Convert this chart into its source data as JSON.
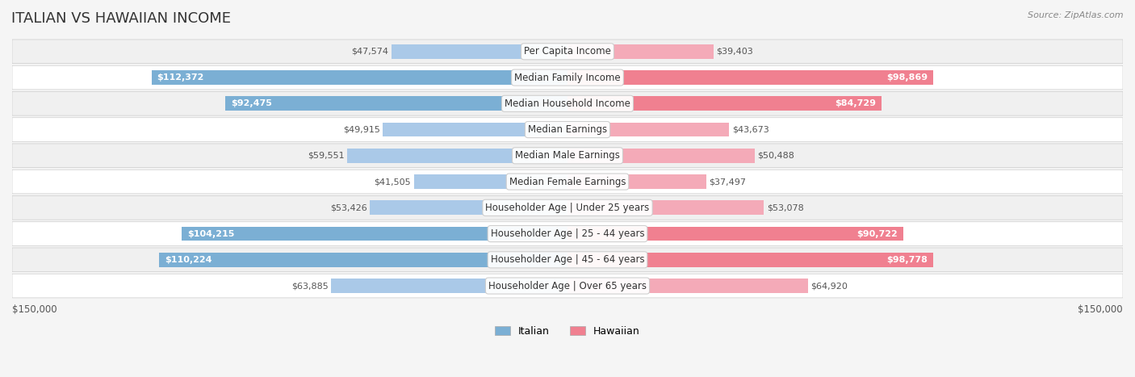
{
  "title": "ITALIAN VS HAWAIIAN INCOME",
  "source": "Source: ZipAtlas.com",
  "categories": [
    "Per Capita Income",
    "Median Family Income",
    "Median Household Income",
    "Median Earnings",
    "Median Male Earnings",
    "Median Female Earnings",
    "Householder Age | Under 25 years",
    "Householder Age | 25 - 44 years",
    "Householder Age | 45 - 64 years",
    "Householder Age | Over 65 years"
  ],
  "italian_values": [
    47574,
    112372,
    92475,
    49915,
    59551,
    41505,
    53426,
    104215,
    110224,
    63885
  ],
  "hawaiian_values": [
    39403,
    98869,
    84729,
    43673,
    50488,
    37497,
    53078,
    90722,
    98778,
    64920
  ],
  "italian_labels": [
    "$47,574",
    "$112,372",
    "$92,475",
    "$49,915",
    "$59,551",
    "$41,505",
    "$53,426",
    "$104,215",
    "$110,224",
    "$63,885"
  ],
  "hawaiian_labels": [
    "$39,403",
    "$98,869",
    "$84,729",
    "$43,673",
    "$50,488",
    "$37,497",
    "$53,078",
    "$90,722",
    "$98,778",
    "$64,920"
  ],
  "italian_color": "#7bafd4",
  "hawaiian_color": "#f08090",
  "italian_color_dark": "#5b8fbf",
  "hawaiian_color_dark": "#e06070",
  "italian_color_light": "#aac9e8",
  "hawaiian_color_light": "#f4aab8",
  "max_value": 150000,
  "background_color": "#f5f5f5",
  "row_bg_light": "#ffffff",
  "row_bg_dark": "#eeeeee",
  "title_fontsize": 13,
  "label_fontsize": 8.5,
  "value_fontsize": 8,
  "legend_fontsize": 9
}
